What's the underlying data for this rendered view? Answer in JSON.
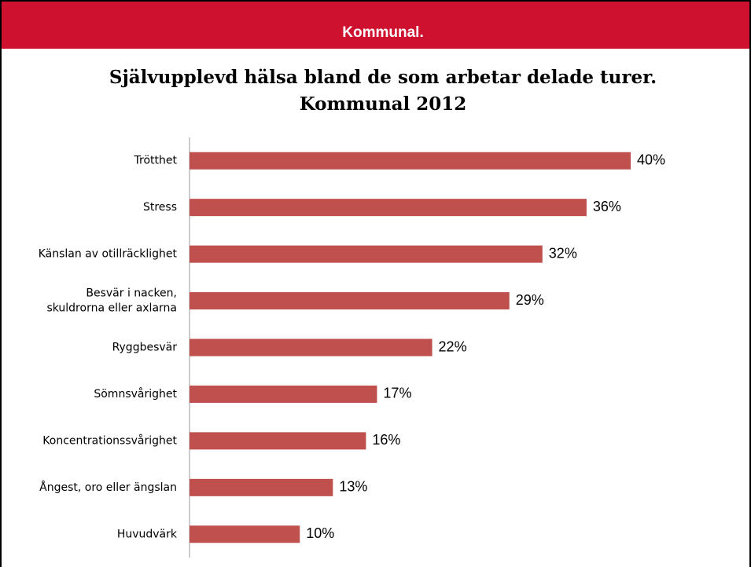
{
  "header": {
    "logo": "Kommunal."
  },
  "chart_data": {
    "type": "bar",
    "orientation": "horizontal",
    "title": [
      "Självupplevd hälsa bland de som arbetar delade turer.",
      "Kommunal 2012"
    ],
    "categories": [
      "Trötthet",
      "Stress",
      "Känslan av otillräcklighet",
      [
        "Besvär i nacken,",
        "skuldrorna eller axlarna"
      ],
      "Ryggbesvär",
      "Sömnsvårighet",
      "Koncentrationssvårighet",
      "Ångest, oro eller ängslan",
      "Huvudvärk"
    ],
    "values": [
      40,
      36,
      32,
      29,
      22,
      17,
      16,
      13,
      10
    ],
    "value_labels": [
      "40%",
      "36%",
      "32%",
      "29%",
      "22%",
      "17%",
      "16%",
      "13%",
      "10%"
    ],
    "color": "#c0504d",
    "xlim": [
      0,
      40
    ]
  }
}
